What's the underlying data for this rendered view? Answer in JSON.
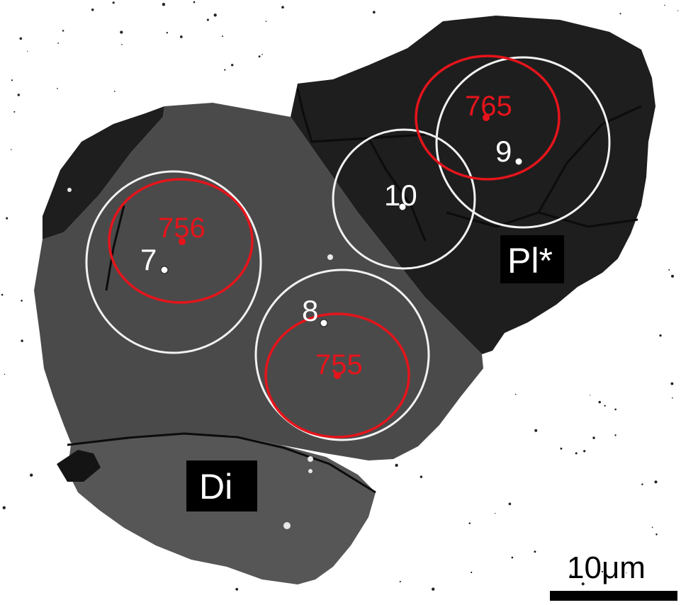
{
  "image": {
    "type": "backscattered-electron micrograph"
  },
  "phases": [
    {
      "id": "pl",
      "label": "Pl*"
    },
    {
      "id": "di",
      "label": "Di"
    }
  ],
  "spots_white": [
    {
      "id": "w7",
      "label": "7"
    },
    {
      "id": "w8",
      "label": "8"
    },
    {
      "id": "w9",
      "label": "9"
    },
    {
      "id": "w10",
      "label": "10"
    }
  ],
  "spots_red": [
    {
      "id": "r756",
      "label": "756"
    },
    {
      "id": "r755",
      "label": "755"
    },
    {
      "id": "r765",
      "label": "765"
    }
  ],
  "scale_bar": {
    "label": "10μm"
  },
  "colors": {
    "background": "#ffffff",
    "plagioclase": "#1e1e1e",
    "diopside": "#4a4a4a",
    "diopside_lower": "#565656",
    "white_ring": "#f2f2f2",
    "red_ring": "#e5141b"
  }
}
